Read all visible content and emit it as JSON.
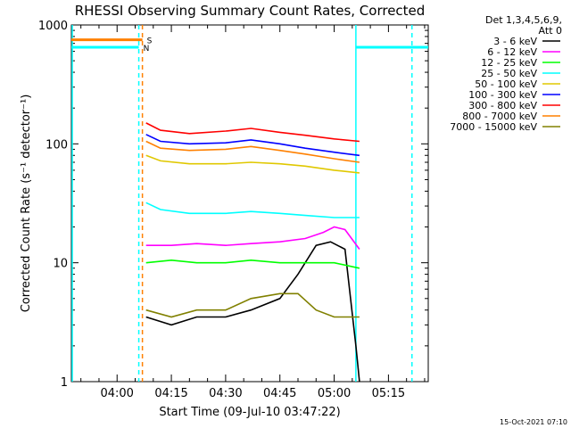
{
  "chart_data": {
    "type": "line",
    "title": "RHESSI Observing Summary Count Rates, Corrected",
    "xlabel": "Start Time (09-Jul-10 03:47:22)",
    "ylabel": "Corrected Count Rate (s⁻¹ detector⁻¹)",
    "xlim": [
      "03:47:22",
      "05:26:00"
    ],
    "ylim": [
      1,
      1000
    ],
    "yscale": "log",
    "x_ticks": [
      "04:00",
      "04:15",
      "04:30",
      "04:45",
      "05:00",
      "05:15"
    ],
    "y_ticks": [
      "1",
      "10",
      "100",
      "1000"
    ],
    "legend_title": [
      "Det 1,3,4,5,6,9,",
      "Att 0"
    ],
    "legend_placement": "right",
    "footer_date": "15-Oct-2021 07:10",
    "series": [
      {
        "name": "3 - 6 keV",
        "color": "#000000",
        "x": [
          "04:08",
          "04:15",
          "04:22",
          "04:30",
          "04:37",
          "04:45",
          "04:50",
          "04:55",
          "04:59",
          "05:03",
          "05:06",
          "05:07"
        ],
        "y": [
          3.5,
          3,
          3.5,
          3.5,
          4,
          5,
          8,
          14,
          15,
          13,
          2,
          1
        ]
      },
      {
        "name": "6 - 12 keV",
        "color": "#ff00ff",
        "x": [
          "04:08",
          "04:15",
          "04:22",
          "04:30",
          "04:37",
          "04:45",
          "04:52",
          "04:57",
          "05:00",
          "05:03",
          "05:07"
        ],
        "y": [
          14,
          14,
          14.5,
          14,
          14.5,
          15,
          16,
          18,
          20,
          19,
          13
        ]
      },
      {
        "name": "12 - 25 keV",
        "color": "#00ff00",
        "x": [
          "04:08",
          "04:15",
          "04:22",
          "04:30",
          "04:37",
          "04:45",
          "04:52",
          "05:00",
          "05:07"
        ],
        "y": [
          10,
          10.5,
          10,
          10,
          10.5,
          10,
          10,
          10,
          9
        ]
      },
      {
        "name": "25 - 50 keV",
        "color": "#00ffff",
        "x": [
          "04:08",
          "04:12",
          "04:20",
          "04:30",
          "04:37",
          "04:45",
          "04:52",
          "05:00",
          "05:07"
        ],
        "y": [
          32,
          28,
          26,
          26,
          27,
          26,
          25,
          24,
          24
        ]
      },
      {
        "name": "50 - 100 keV",
        "color": "#e0c800",
        "x": [
          "04:08",
          "04:12",
          "04:20",
          "04:30",
          "04:37",
          "04:45",
          "04:52",
          "05:00",
          "05:07"
        ],
        "y": [
          80,
          72,
          68,
          68,
          70,
          68,
          65,
          60,
          57
        ]
      },
      {
        "name": "100 - 300 keV",
        "color": "#0000ff",
        "x": [
          "04:08",
          "04:12",
          "04:20",
          "04:30",
          "04:37",
          "04:45",
          "04:52",
          "05:00",
          "05:07"
        ],
        "y": [
          120,
          105,
          100,
          102,
          108,
          100,
          92,
          85,
          80
        ]
      },
      {
        "name": "300 - 800 keV",
        "color": "#ff0000",
        "x": [
          "04:08",
          "04:12",
          "04:20",
          "04:30",
          "04:37",
          "04:45",
          "04:52",
          "05:00",
          "05:07"
        ],
        "y": [
          150,
          130,
          122,
          128,
          135,
          125,
          118,
          110,
          105
        ]
      },
      {
        "name": "800 - 7000 keV",
        "color": "#ff8000",
        "x": [
          "04:08",
          "04:12",
          "04:20",
          "04:30",
          "04:37",
          "04:45",
          "04:52",
          "05:00",
          "05:07"
        ],
        "y": [
          105,
          92,
          88,
          90,
          95,
          88,
          82,
          75,
          70
        ]
      },
      {
        "name": "7000 - 15000 keV",
        "color": "#808000",
        "x": [
          "04:08",
          "04:15",
          "04:22",
          "04:30",
          "04:37",
          "04:45",
          "04:50",
          "04:55",
          "05:00",
          "05:07"
        ],
        "y": [
          4,
          3.5,
          4,
          4,
          5,
          5.5,
          5.5,
          4,
          3.5,
          3.5
        ]
      }
    ],
    "flags": [
      {
        "label": "S",
        "color": "#ff8000",
        "value": 750,
        "x_start": "03:47:22",
        "x_end": "04:07:00"
      },
      {
        "label": "N",
        "color": "#00ffff",
        "value": 650,
        "x_start": "03:47:22",
        "x_end": "04:06:00"
      },
      {
        "label": "",
        "color": "#00ffff",
        "value": 650,
        "x_start": "05:06:00",
        "x_end": "05:26:00"
      }
    ],
    "vertical_markers": [
      {
        "color": "#00ffff",
        "style": "solid",
        "x": "03:47:22"
      },
      {
        "color": "#00ffff",
        "style": "dashed",
        "x": "04:06:00"
      },
      {
        "color": "#ff8000",
        "style": "dashed",
        "x": "04:07:00"
      },
      {
        "color": "#00ffff",
        "style": "solid",
        "x": "05:06:00"
      },
      {
        "color": "#00ffff",
        "style": "dashed",
        "x": "05:21:30"
      }
    ]
  }
}
